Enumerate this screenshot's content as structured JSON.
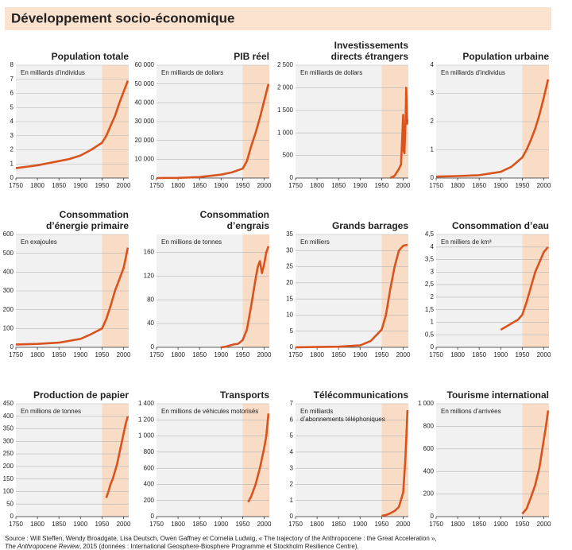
{
  "header": {
    "title": "Développement socio-économique"
  },
  "chart_data": [
    {
      "type": "line",
      "title": [
        "Population  totale"
      ],
      "unit": [
        "En milliards d’individus"
      ],
      "color": "#d9531e",
      "grid": true,
      "shade_from": 1950,
      "x": [
        1750,
        1800,
        1850,
        1875,
        1900,
        1925,
        1950,
        1960,
        1970,
        1980,
        1990,
        2000,
        2010
      ],
      "values": [
        0.7,
        0.9,
        1.2,
        1.35,
        1.6,
        2.0,
        2.5,
        3.0,
        3.7,
        4.4,
        5.3,
        6.1,
        6.9
      ],
      "xlim": [
        1750,
        2012
      ],
      "xticks": [
        1750,
        1800,
        1850,
        1900,
        1950,
        2000
      ],
      "ylim": [
        0,
        8
      ],
      "yticks": [
        0,
        1,
        2,
        3,
        4,
        5,
        6,
        7,
        8
      ]
    },
    {
      "type": "line",
      "title": [
        "PIB réel"
      ],
      "unit": [
        "En milliards de dollars"
      ],
      "color": "#d9531e",
      "grid": true,
      "shade_from": 1950,
      "x": [
        1750,
        1800,
        1850,
        1900,
        1925,
        1950,
        1960,
        1970,
        1980,
        1990,
        2000,
        2010
      ],
      "values": [
        0,
        100,
        500,
        1800,
        3000,
        5000,
        9000,
        17000,
        24000,
        32000,
        41000,
        50000
      ],
      "xlim": [
        1750,
        2012
      ],
      "xticks": [
        1750,
        1800,
        1850,
        1900,
        1950,
        2000
      ],
      "ylim": [
        0,
        60000
      ],
      "yticks": [
        0,
        {
          "value": 10000,
          "label": "10 000"
        },
        {
          "value": 20000,
          "label": "20 000"
        },
        {
          "value": 30000,
          "label": "30 000"
        },
        {
          "value": 40000,
          "label": "40 000"
        },
        {
          "value": 50000,
          "label": "50 000"
        },
        {
          "value": 60000,
          "label": "60 000"
        }
      ]
    },
    {
      "type": "line",
      "title": [
        "Investissements",
        "directs étrangers"
      ],
      "unit": [
        "En milliards de dollars"
      ],
      "color": "#d9531e",
      "grid": true,
      "shade_from": 1950,
      "x": [
        1970,
        1980,
        1990,
        1995,
        2000,
        2001,
        2003,
        2006,
        2007,
        2009,
        2010
      ],
      "values": [
        0,
        50,
        200,
        300,
        1400,
        600,
        550,
        1400,
        2000,
        1200,
        1300
      ],
      "xlim": [
        1750,
        2012
      ],
      "xticks": [
        1750,
        1800,
        1850,
        1900,
        1950,
        2000
      ],
      "ylim": [
        0,
        2500
      ],
      "yticks": [
        0,
        500,
        {
          "value": 1000,
          "label": "1 000"
        },
        {
          "value": 1500,
          "label": "1 500"
        },
        {
          "value": 2000,
          "label": "2 000"
        },
        {
          "value": 2500,
          "label": "2 500"
        }
      ]
    },
    {
      "type": "line",
      "title": [
        "Population urbaine"
      ],
      "unit": [
        "En milliards d’individus"
      ],
      "color": "#d9531e",
      "grid": true,
      "shade_from": 1950,
      "x": [
        1750,
        1800,
        1850,
        1900,
        1925,
        1950,
        1960,
        1970,
        1980,
        1990,
        2000,
        2010
      ],
      "values": [
        0.05,
        0.07,
        0.1,
        0.22,
        0.4,
        0.73,
        1.0,
        1.35,
        1.75,
        2.25,
        2.85,
        3.5
      ],
      "xlim": [
        1750,
        2012
      ],
      "xticks": [
        1750,
        1800,
        1850,
        1900,
        1950,
        2000
      ],
      "ylim": [
        0,
        4
      ],
      "yticks": [
        0,
        1,
        2,
        3,
        4
      ]
    },
    {
      "type": "line",
      "title": [
        "Consommation",
        "d’énergie primaire"
      ],
      "unit": [
        "En exajoules"
      ],
      "color": "#d9531e",
      "grid": true,
      "shade_from": 1950,
      "x": [
        1750,
        1800,
        1850,
        1900,
        1925,
        1950,
        1960,
        1970,
        1980,
        1990,
        2000,
        2010
      ],
      "values": [
        15,
        18,
        25,
        45,
        70,
        100,
        150,
        220,
        300,
        360,
        420,
        530
      ],
      "xlim": [
        1750,
        2012
      ],
      "xticks": [
        1750,
        1800,
        1850,
        1900,
        1950,
        2000
      ],
      "ylim": [
        0,
        600
      ],
      "yticks": [
        0,
        100,
        200,
        300,
        400,
        500,
        600
      ]
    },
    {
      "type": "line",
      "title": [
        "Consommation",
        "d’engrais"
      ],
      "unit": [
        "En millions de tonnes"
      ],
      "color": "#d9531e",
      "grid": true,
      "shade_from": 1950,
      "x": [
        1900,
        1910,
        1920,
        1930,
        1940,
        1950,
        1960,
        1970,
        1980,
        1985,
        1990,
        1995,
        2000,
        2005,
        2010
      ],
      "values": [
        0,
        1,
        3,
        5,
        6,
        12,
        30,
        70,
        115,
        135,
        145,
        125,
        140,
        160,
        170
      ],
      "xlim": [
        1750,
        2012
      ],
      "xticks": [
        1750,
        1800,
        1850,
        1900,
        1950,
        2000
      ],
      "ylim": [
        0,
        190
      ],
      "yticks": [
        0,
        40,
        80,
        120,
        160
      ]
    },
    {
      "type": "line",
      "title": [
        "Grands barrages"
      ],
      "unit": [
        "En milliers"
      ],
      "color": "#d9531e",
      "grid": true,
      "shade_from": 1950,
      "x": [
        1750,
        1800,
        1850,
        1900,
        1925,
        1950,
        1960,
        1970,
        1980,
        1990,
        2000,
        2010
      ],
      "values": [
        0,
        0.1,
        0.2,
        0.6,
        2,
        5.5,
        10,
        18,
        25,
        30,
        31.5,
        31.8
      ],
      "xlim": [
        1750,
        2012
      ],
      "xticks": [
        1750,
        1800,
        1850,
        1900,
        1950,
        2000
      ],
      "ylim": [
        0,
        35
      ],
      "yticks": [
        0,
        5,
        10,
        15,
        20,
        25,
        30,
        35
      ]
    },
    {
      "type": "line",
      "title": [
        "Consommation d’eau"
      ],
      "unit": [
        "En milliers de km³"
      ],
      "color": "#d9531e",
      "grid": true,
      "shade_from": 1950,
      "x": [
        1900,
        1910,
        1920,
        1930,
        1940,
        1950,
        1960,
        1970,
        1980,
        1990,
        2000,
        2010
      ],
      "values": [
        0.7,
        0.8,
        0.9,
        1.0,
        1.1,
        1.3,
        1.8,
        2.4,
        3.0,
        3.4,
        3.8,
        4.0
      ],
      "xlim": [
        1750,
        2012
      ],
      "xticks": [
        1750,
        1800,
        1850,
        1900,
        1950,
        2000
      ],
      "ylim": [
        0,
        4.5
      ],
      "yticks": [
        0,
        {
          "value": 0.5,
          "label": "0,5"
        },
        1,
        {
          "value": 1.5,
          "label": "1,5"
        },
        2,
        {
          "value": 2.5,
          "label": "2,5"
        },
        3,
        {
          "value": 3.5,
          "label": "3,5"
        },
        4,
        {
          "value": 4.5,
          "label": "4,5"
        }
      ]
    },
    {
      "type": "line",
      "title": [
        "Production  de papier"
      ],
      "unit": [
        "En millions de tonnes"
      ],
      "color": "#d9531e",
      "grid": true,
      "shade_from": 1950,
      "x": [
        1960,
        1965,
        1970,
        1975,
        1980,
        1985,
        1990,
        1995,
        2000,
        2005,
        2010
      ],
      "values": [
        75,
        100,
        130,
        150,
        180,
        210,
        250,
        290,
        330,
        370,
        400
      ],
      "xlim": [
        1750,
        2012
      ],
      "xticks": [
        1750,
        1800,
        1850,
        1900,
        1950,
        2000
      ],
      "ylim": [
        0,
        450
      ],
      "yticks": [
        0,
        50,
        100,
        150,
        200,
        250,
        300,
        350,
        400,
        450
      ]
    },
    {
      "type": "line",
      "title": [
        "Transports"
      ],
      "unit": [
        "En millions de véhicules motorisés"
      ],
      "color": "#d9531e",
      "grid": true,
      "shade_from": 1950,
      "x": [
        1963,
        1970,
        1980,
        1990,
        2000,
        2005,
        2010
      ],
      "values": [
        180,
        250,
        400,
        600,
        850,
        1000,
        1280
      ],
      "xlim": [
        1750,
        2012
      ],
      "xticks": [
        1750,
        1800,
        1850,
        1900,
        1950,
        2000
      ],
      "ylim": [
        0,
        1400
      ],
      "yticks": [
        0,
        200,
        400,
        600,
        800,
        {
          "value": 1000,
          "label": "1 000"
        },
        {
          "value": 1200,
          "label": "1 200"
        },
        {
          "value": 1400,
          "label": "1 400"
        }
      ]
    },
    {
      "type": "line",
      "title": [
        "Télécommunications"
      ],
      "unit": [
        "En milliards",
        "d’abonnements téléphoniques"
      ],
      "color": "#d9531e",
      "grid": true,
      "shade_from": 1950,
      "x": [
        1950,
        1960,
        1970,
        1980,
        1990,
        2000,
        2005,
        2010
      ],
      "values": [
        0.05,
        0.1,
        0.2,
        0.35,
        0.6,
        1.5,
        3.5,
        6.6
      ],
      "xlim": [
        1750,
        2012
      ],
      "xticks": [
        1750,
        1800,
        1850,
        1900,
        1950,
        2000
      ],
      "ylim": [
        0,
        7
      ],
      "yticks": [
        0,
        1,
        2,
        3,
        4,
        5,
        6,
        7
      ]
    },
    {
      "type": "line",
      "title": [
        "Tourisme international"
      ],
      "unit": [
        "En millions d’arrivées"
      ],
      "color": "#d9531e",
      "grid": true,
      "shade_from": 1950,
      "x": [
        1950,
        1960,
        1970,
        1980,
        1990,
        2000,
        2005,
        2010
      ],
      "values": [
        25,
        70,
        170,
        280,
        440,
        680,
        800,
        940
      ],
      "xlim": [
        1750,
        2012
      ],
      "xticks": [
        1750,
        1800,
        1850,
        1900,
        1950,
        2000
      ],
      "ylim": [
        0,
        1000
      ],
      "yticks": [
        0,
        200,
        400,
        600,
        800,
        {
          "value": 1000,
          "label": "1 000"
        }
      ]
    }
  ],
  "footer": {
    "line1": "Source : Will Steffen, Wendy Broadgate, Lisa Deutsch, Owen Gaffney et Cornelia Ludwig, « The trajectory of the Anthropocene : the Great Acceleration »,",
    "italic": "The Anthropocene Review",
    "line2": ", 2015 (données : International Geosphere-Biosphere Programme et Stockholm Resilience Centre)."
  }
}
